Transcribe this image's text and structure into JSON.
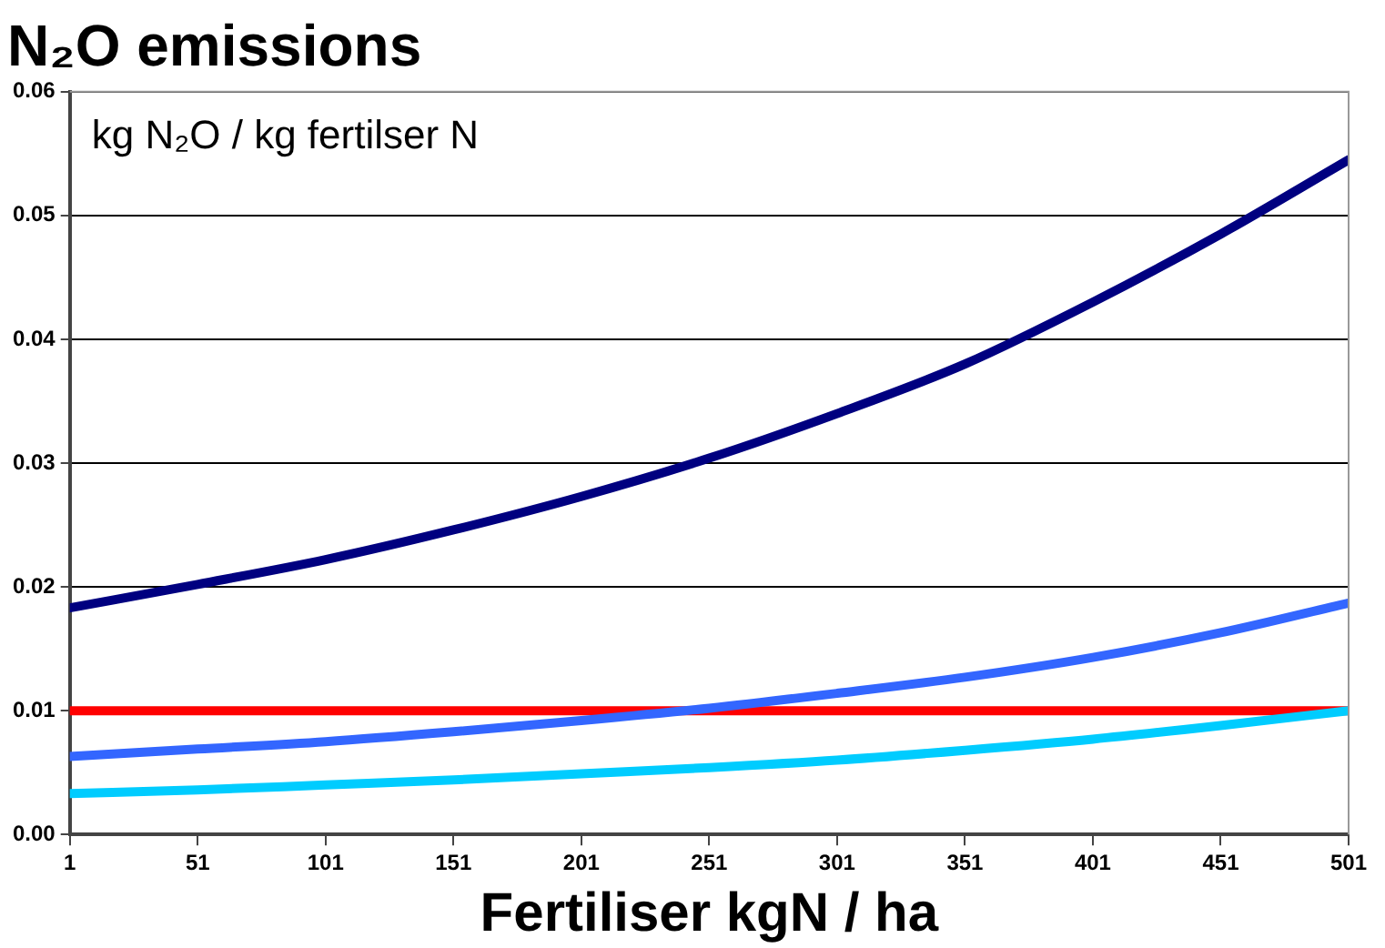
{
  "chart_data": {
    "type": "line",
    "title": "N₂O emissions",
    "xlabel": "Fertiliser kgN / ha",
    "annotations": [
      "kg N₂O / kg fertilser N"
    ],
    "x": [
      1,
      51,
      101,
      151,
      201,
      251,
      301,
      351,
      401,
      451,
      501
    ],
    "series": [
      {
        "color": "#000080",
        "values": [
          0.0183,
          0.0202,
          0.0222,
          0.0246,
          0.0273,
          0.0304,
          0.034,
          0.038,
          0.043,
          0.0485,
          0.0545
        ]
      },
      {
        "color": "#3366ff",
        "values": [
          0.0063,
          0.0069,
          0.0075,
          0.0083,
          0.0092,
          0.0102,
          0.0114,
          0.0127,
          0.0143,
          0.0163,
          0.0187
        ]
      },
      {
        "color": "#00ccff",
        "values": [
          0.0033,
          0.0036,
          0.004,
          0.0044,
          0.0049,
          0.0054,
          0.006,
          0.0068,
          0.0077,
          0.0088,
          0.01
        ]
      },
      {
        "color": "#ff0000",
        "values": [
          0.01,
          0.01,
          0.01,
          0.01,
          0.01,
          0.01,
          0.01,
          0.01,
          0.01,
          0.01,
          0.01
        ]
      }
    ],
    "xlim": [
      1,
      501
    ],
    "xticks": [
      1,
      51,
      101,
      151,
      201,
      251,
      301,
      351,
      401,
      451,
      501
    ],
    "ylim": [
      0,
      0.06
    ],
    "yticks": [
      {
        "value": 0,
        "label": "0.00"
      },
      {
        "value": 0.01,
        "label": "0.01"
      },
      {
        "value": 0.02,
        "label": "0.02"
      },
      {
        "value": 0.03,
        "label": "0.03"
      },
      {
        "value": 0.04,
        "label": "0.04"
      },
      {
        "value": 0.05,
        "label": "0.05"
      },
      {
        "value": 0.06,
        "label": "0.06"
      }
    ],
    "grid": "y",
    "legend": false,
    "marker": "none",
    "line_style": "solid"
  }
}
